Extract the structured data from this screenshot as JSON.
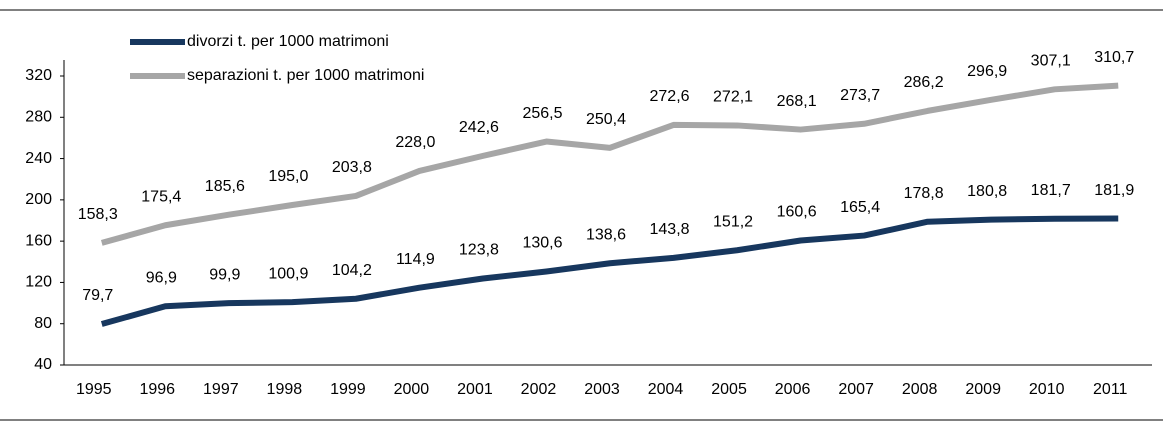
{
  "chart_data": {
    "type": "line",
    "categories": [
      "1995",
      "1996",
      "1997",
      "1998",
      "1999",
      "2000",
      "2001",
      "2002",
      "2003",
      "2004",
      "2005",
      "2006",
      "2007",
      "2008",
      "2009",
      "2010",
      "2011"
    ],
    "series": [
      {
        "name": "divorzi t. per 1000 matrimoni",
        "color": "#17375e",
        "values": [
          79.7,
          96.9,
          99.9,
          100.9,
          104.2,
          114.9,
          123.8,
          130.6,
          138.6,
          143.8,
          151.2,
          160.6,
          165.4,
          178.8,
          180.8,
          181.7,
          181.9
        ],
        "value_labels": [
          "79,7",
          "96,9",
          "99,9",
          "100,9",
          "104,2",
          "114,9",
          "123,8",
          "130,6",
          "138,6",
          "143,8",
          "151,2",
          "160,6",
          "165,4",
          "178,8",
          "180,8",
          "181,7",
          "181,9"
        ]
      },
      {
        "name": "separazioni t. per 1000 matrimoni",
        "color": "#a6a6a6",
        "values": [
          158.3,
          175.4,
          185.6,
          195.0,
          203.8,
          228.0,
          242.6,
          256.5,
          250.4,
          272.6,
          272.1,
          268.1,
          273.7,
          286.2,
          296.9,
          307.1,
          310.7
        ],
        "value_labels": [
          "158,3",
          "175,4",
          "185,6",
          "195,0",
          "203,8",
          "228,0",
          "242,6",
          "256,5",
          "250,4",
          "272,6",
          "272,1",
          "268,1",
          "273,7",
          "286,2",
          "296,9",
          "307,1",
          "310,7"
        ]
      }
    ],
    "ylim": [
      40,
      320
    ],
    "yticks": [
      40,
      80,
      120,
      160,
      200,
      240,
      280,
      320
    ],
    "grid": false,
    "legend": "top-left"
  }
}
